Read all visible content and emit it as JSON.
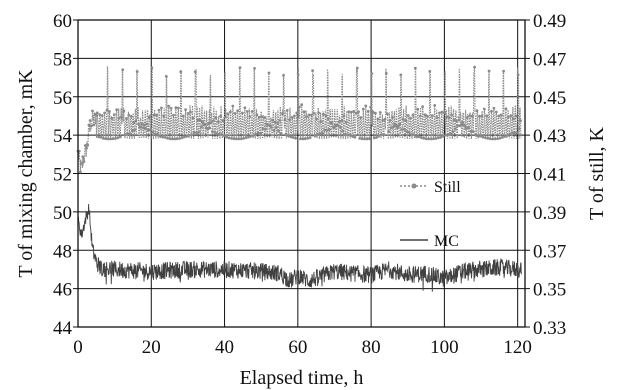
{
  "chart_data": {
    "type": "line",
    "xlabel": "Elapsed time, h",
    "ylabel_left": "T of mixing chamber, mK",
    "ylabel_right": "T of still, K",
    "xlim": [
      0,
      122
    ],
    "ylim_left": [
      44,
      60
    ],
    "ylim_right": [
      0.33,
      0.49
    ],
    "x_ticks": [
      0,
      20,
      40,
      60,
      80,
      100,
      120
    ],
    "y_left_ticks": [
      44,
      46,
      48,
      50,
      52,
      54,
      56,
      58,
      60
    ],
    "y_right_ticks": [
      0.33,
      0.35,
      0.37,
      0.39,
      0.41,
      0.43,
      0.45,
      0.47,
      0.49
    ],
    "y_right_tick_labels": [
      "0.33",
      "0.35",
      "0.37",
      "0.39",
      "0.41",
      "0.43",
      "0.45",
      "0.47",
      "0.49"
    ],
    "grid": true,
    "legend_position": "right-middle",
    "series": [
      {
        "name": "Still",
        "axis": "right",
        "style": "dotted-markers",
        "color": "#8a8a8a",
        "x": [
          0,
          0.5,
          1,
          1.5,
          2,
          2.5,
          3,
          3.5,
          4,
          4.5,
          5,
          6,
          8,
          10,
          20,
          30,
          40,
          50,
          60,
          70,
          80,
          90,
          100,
          110,
          120,
          121
        ],
        "y": [
          0.42,
          0.415,
          0.412,
          0.418,
          0.421,
          0.425,
          0.432,
          0.436,
          0.438,
          0.438,
          0.437,
          0.437,
          0.437,
          0.437,
          0.437,
          0.437,
          0.437,
          0.437,
          0.437,
          0.437,
          0.437,
          0.437,
          0.437,
          0.437,
          0.437,
          0.437
        ],
        "oscillation_band": [
          0.428,
          0.446
        ],
        "oscillation_peak_max": 0.466,
        "oscillation_period_h": 4.0
      },
      {
        "name": "MC",
        "axis": "left",
        "style": "solid",
        "color": "#404040",
        "x": [
          0,
          1,
          2,
          3,
          3.5,
          4,
          5,
          6,
          10,
          20,
          30,
          40,
          50,
          55,
          58,
          60,
          63,
          70,
          80,
          85,
          90,
          95,
          100,
          105,
          110,
          115,
          120,
          121
        ],
        "y": [
          49.5,
          48.8,
          49.6,
          50.2,
          49.0,
          48.0,
          47.4,
          47.1,
          47.0,
          46.9,
          47.0,
          47.0,
          46.9,
          46.8,
          46.4,
          46.7,
          46.4,
          46.9,
          46.7,
          47.0,
          46.7,
          46.8,
          46.5,
          46.9,
          47.0,
          47.1,
          47.0,
          47.0
        ]
      }
    ]
  }
}
